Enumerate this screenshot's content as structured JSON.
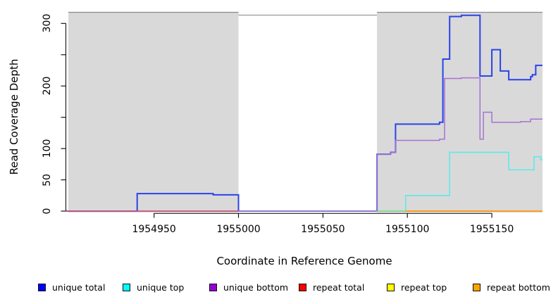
{
  "figure": {
    "background": "#ffffff",
    "plot_background_gray": "#d9d9d9",
    "axis_color": "#000000"
  },
  "chart_data": {
    "type": "line",
    "subtype": "step-coverage-plot",
    "title": "",
    "xlabel": "Coordinate in Reference Genome",
    "ylabel": "Read Coverage Depth",
    "xlim": [
      1954898,
      1955180
    ],
    "ylim": [
      0,
      318
    ],
    "grid": false,
    "legend_position": "bottom",
    "x_ticks": [
      {
        "value": 1954950,
        "label": "1954950"
      },
      {
        "value": 1955000,
        "label": "1955000"
      },
      {
        "value": 1955050,
        "label": "1955050"
      },
      {
        "value": 1955100,
        "label": "1955100"
      },
      {
        "value": 1955150,
        "label": "1955150"
      }
    ],
    "y_ticks": [
      {
        "value": 0,
        "label": "0"
      },
      {
        "value": 50,
        "label": "50"
      },
      {
        "value": 100,
        "label": "100"
      },
      {
        "value": 150,
        "label": ""
      },
      {
        "value": 200,
        "label": "200"
      },
      {
        "value": 250,
        "label": ""
      },
      {
        "value": 300,
        "label": "300"
      }
    ],
    "background_regions": [
      {
        "kind": "repeat-region",
        "x0": 1954898,
        "x1": 1955000,
        "color": "#d9d9d9",
        "inset_top": 0,
        "border_top": "#8a8a8a"
      },
      {
        "kind": "unique-region",
        "x0": 1955000,
        "x1": 1955082,
        "color": "#ffffff",
        "inset_top": 4,
        "border_top": "#9a9a9a"
      },
      {
        "kind": "repeat-region",
        "x0": 1955082,
        "x1": 1955180,
        "color": "#d9d9d9",
        "inset_top": 0,
        "border_top": "#8a8a8a"
      }
    ],
    "series": [
      {
        "name": "unique total",
        "legend_color": "#0000ff",
        "line_color": "#2a43ea",
        "line_width": 2,
        "end": 1955180,
        "points": [
          [
            1954898,
            0
          ],
          [
            1954940,
            28
          ],
          [
            1954985,
            26
          ],
          [
            1955000,
            0
          ],
          [
            1955082,
            91
          ],
          [
            1955090,
            94
          ],
          [
            1955093,
            139
          ],
          [
            1955119,
            142
          ],
          [
            1955121,
            243
          ],
          [
            1955125,
            311
          ],
          [
            1955132,
            313
          ],
          [
            1955143,
            216
          ],
          [
            1955150,
            258
          ],
          [
            1955155,
            224
          ],
          [
            1955160,
            210
          ],
          [
            1955173,
            215
          ],
          [
            1955174,
            218
          ],
          [
            1955176,
            233
          ]
        ]
      },
      {
        "name": "unique top",
        "legend_color": "#00ffff",
        "line_color": "#5fe9e9",
        "line_width": 1.6,
        "end": 1955180,
        "points": [
          [
            1954898,
            0
          ],
          [
            1955099,
            25
          ],
          [
            1955125,
            94
          ],
          [
            1955160,
            66
          ],
          [
            1955175,
            87
          ],
          [
            1955179,
            82
          ]
        ]
      },
      {
        "name": "unique bottom",
        "legend_color": "#9400d3",
        "line_color": "#a671d2",
        "line_width": 1.5,
        "end": 1955180,
        "points": [
          [
            1954898,
            0
          ],
          [
            1955082,
            91
          ],
          [
            1955090,
            94
          ],
          [
            1955093,
            113
          ],
          [
            1955119,
            115
          ],
          [
            1955122,
            212
          ],
          [
            1955132,
            213
          ],
          [
            1955143,
            115
          ],
          [
            1955145,
            158
          ],
          [
            1955150,
            142
          ],
          [
            1955167,
            143
          ],
          [
            1955173,
            147
          ]
        ]
      },
      {
        "name": "repeat total",
        "legend_color": "#ff0000",
        "line_color": "#e23b52",
        "line_width": 1.3,
        "end": 1955000,
        "points": [
          [
            1954898,
            0
          ]
        ]
      },
      {
        "name": "repeat top",
        "legend_color": "#ffff00",
        "line_color": "#82d882",
        "line_width": 1.6,
        "end": 1955099,
        "points": [
          [
            1955082,
            0
          ]
        ]
      },
      {
        "name": "repeat bottom",
        "legend_color": "#ffa500",
        "line_color": "#ff9d1e",
        "line_width": 2,
        "end": 1955180,
        "points": [
          [
            1955099,
            0
          ]
        ]
      }
    ]
  }
}
